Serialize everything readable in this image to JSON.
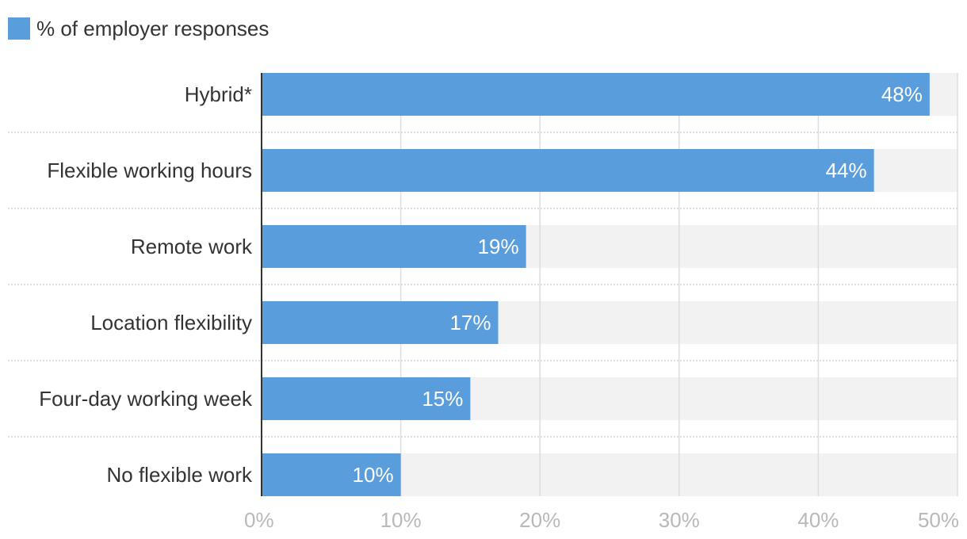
{
  "legend": {
    "label": "% of employer responses"
  },
  "colors": {
    "bar": "#5a9ddc",
    "track": "#f2f2f2",
    "grid": "#dddddd",
    "separator": "#cccccc",
    "axis": "#333333"
  },
  "chart_data": {
    "type": "bar",
    "orientation": "horizontal",
    "categories": [
      "Hybrid*",
      "Flexible working hours",
      "Remote work",
      "Location flexibility",
      "Four-day working week",
      "No flexible work"
    ],
    "series": [
      {
        "name": "% of employer responses",
        "values": [
          48,
          44,
          19,
          17,
          15,
          10
        ]
      }
    ],
    "data_labels": [
      "48%",
      "44%",
      "19%",
      "17%",
      "15%",
      "10%"
    ],
    "x_ticks": [
      0,
      10,
      20,
      30,
      40,
      50
    ],
    "x_tick_labels": [
      "0%",
      "10%",
      "20%",
      "30%",
      "40%",
      "50%"
    ],
    "xlim": [
      0,
      50
    ],
    "grid": true,
    "legend_position": "top-left"
  }
}
